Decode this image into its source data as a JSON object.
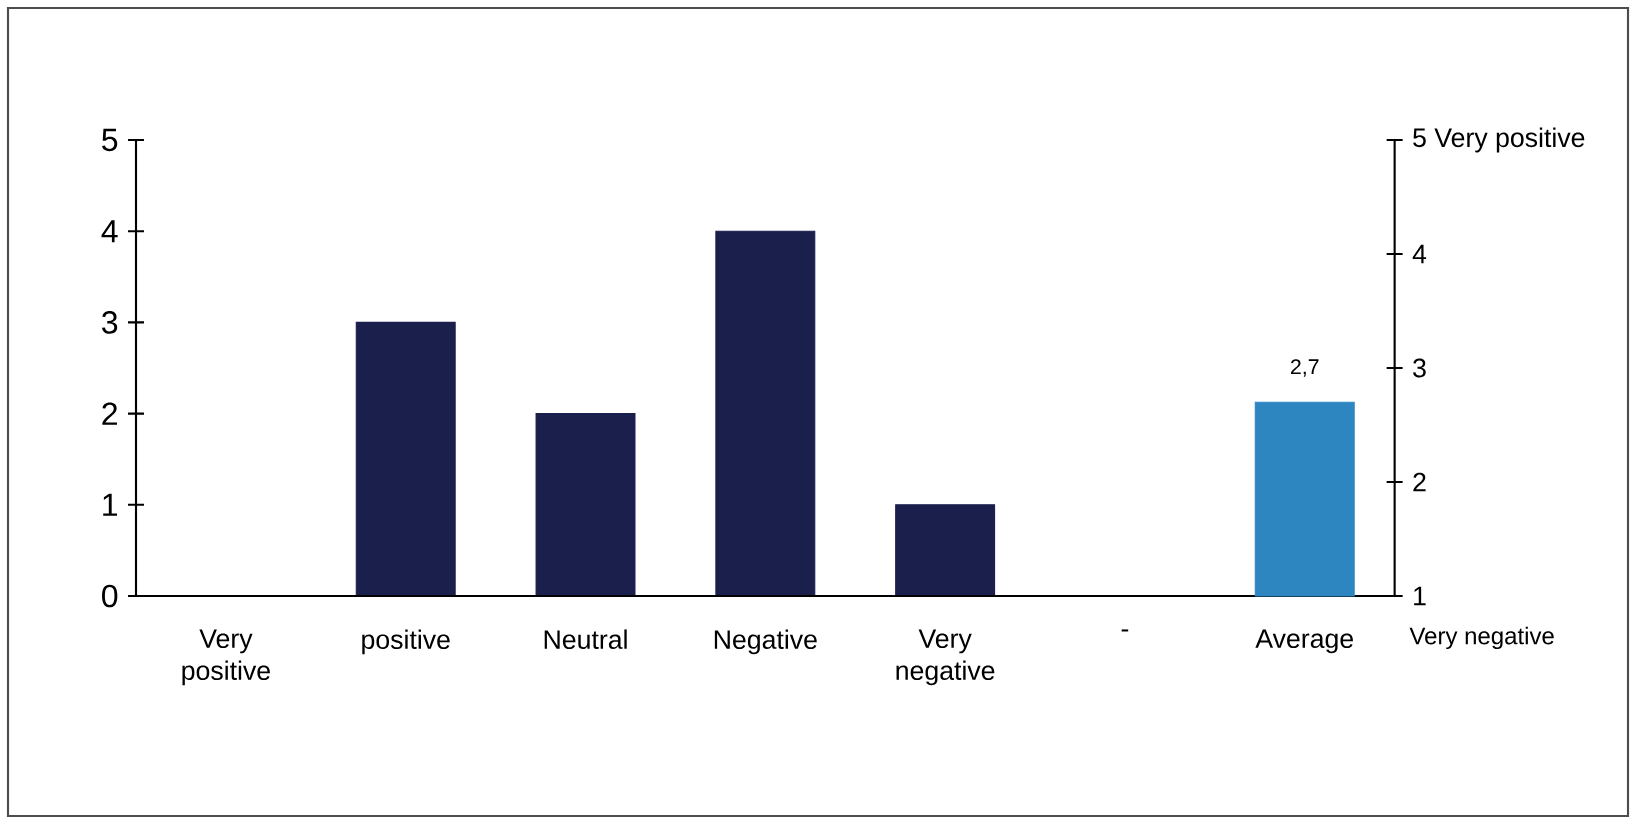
{
  "chart_data": {
    "type": "bar",
    "categories": [
      "Very positive",
      "positive",
      "Neutral",
      "Negative",
      "Very negative",
      "-",
      "Average"
    ],
    "series": [
      {
        "color": "#1b1f4b",
        "values": [
          0,
          3,
          2,
          4,
          1,
          0,
          null
        ]
      },
      {
        "color": "#2e86c1",
        "values": [
          null,
          null,
          null,
          null,
          null,
          null,
          2.7
        ],
        "axis": "y2",
        "value_labels": [
          null,
          null,
          null,
          null,
          null,
          null,
          "2,7"
        ]
      }
    ],
    "ylim": [
      0,
      5
    ],
    "yticks": [
      0,
      1,
      2,
      3,
      4,
      5
    ],
    "y2lim": [
      1,
      5
    ],
    "y2ticks": [
      1,
      2,
      3,
      4,
      {
        "value": 5,
        "label": "5 Very positive"
      }
    ],
    "annotations": [
      "Very negative"
    ],
    "grid": false
  }
}
